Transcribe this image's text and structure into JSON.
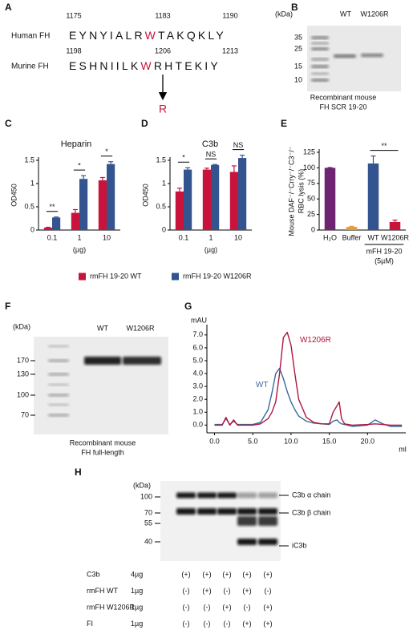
{
  "panel_a": {
    "label": "A",
    "human": {
      "name": "Human FH",
      "positions": [
        1175,
        1183,
        1190
      ],
      "before": "EYNYIALR",
      "residue": "W",
      "after": "TAKQKLY"
    },
    "murine": {
      "name": "Murine FH",
      "positions": [
        1198,
        1206,
        1213
      ],
      "before": "ESHNIILK",
      "residue": "W",
      "after": "RHTEKIY"
    },
    "mutation": "R"
  },
  "panel_b": {
    "label": "B",
    "unit": "(kDa)",
    "markers": [
      "35",
      "25",
      "15",
      "10"
    ],
    "lanes": [
      "WT",
      "W1206R"
    ],
    "caption": [
      "Recombinant mouse",
      "FH SCR 19-20"
    ]
  },
  "chart_data": [
    {
      "label": "C",
      "type": "bar",
      "title": "Heparin",
      "xlabel": "(µg)",
      "ylabel": "OD450",
      "categories": [
        "0.1",
        "1",
        "10"
      ],
      "series": [
        {
          "name": "rmFH 19-20 WT",
          "color": "#c8143c",
          "values": [
            0.05,
            0.37,
            1.07
          ],
          "errors": [
            0.01,
            0.07,
            0.06
          ]
        },
        {
          "name": "rmFH 19-20 W1206R",
          "color": "#34548f",
          "values": [
            0.27,
            1.1,
            1.42
          ],
          "errors": [
            0.01,
            0.07,
            0.05
          ]
        }
      ],
      "ylim": [
        0,
        1.5
      ],
      "yticks": [
        0,
        0.5,
        1,
        1.5
      ],
      "significance": [
        "**",
        "*",
        "*"
      ]
    },
    {
      "label": "D",
      "type": "bar",
      "title": "C3b",
      "xlabel": "(µg)",
      "ylabel": "OD450",
      "categories": [
        "0.1",
        "1",
        "10"
      ],
      "series": [
        {
          "color": "#c8143c",
          "values": [
            0.83,
            1.3,
            1.25
          ],
          "errors": [
            0.07,
            0.03,
            0.13
          ]
        },
        {
          "color": "#34548f",
          "values": [
            1.3,
            1.4,
            1.55
          ],
          "errors": [
            0.04,
            0.01,
            0.06
          ]
        }
      ],
      "ylim": [
        0,
        1.5
      ],
      "yticks": [
        0,
        0.5,
        1,
        1.5
      ],
      "significance": [
        "*",
        "NS",
        "NS"
      ]
    },
    {
      "label": "E",
      "type": "bar",
      "ylabel": [
        "Mouse DAF⁻/⁻Crry⁻/⁻C3⁻/⁻",
        "RBC lysis (%)"
      ],
      "categories": [
        "H₂O",
        "Buffer",
        "WT",
        "W1206R"
      ],
      "values": [
        100,
        5,
        107,
        13
      ],
      "errors": [
        0.5,
        1,
        12,
        3
      ],
      "colors": [
        "#6e2470",
        "#e89a30",
        "#34548f",
        "#c8143c"
      ],
      "group_label": [
        "mFH 19-20",
        "(5µM)"
      ],
      "ylim": [
        0,
        125
      ],
      "yticks": [
        0,
        25,
        50,
        75,
        100,
        125
      ],
      "significance": "**"
    },
    {
      "label": "G",
      "type": "line",
      "ylabel": "mAU",
      "xlabel": "ml",
      "x": [
        0,
        1,
        1.5,
        2,
        2.5,
        3,
        4,
        5,
        6,
        7,
        7.5,
        8,
        8.5,
        9,
        9.5,
        10,
        10.5,
        11,
        12,
        13,
        14,
        15,
        15.5,
        16,
        16.3,
        16.6,
        17,
        18,
        20,
        21,
        22,
        23,
        24.5
      ],
      "series": [
        {
          "name": "WT",
          "color": "#3a6a9c",
          "values": [
            0.05,
            0.05,
            0.5,
            0.05,
            0.3,
            0.05,
            0.05,
            0.05,
            0.2,
            1.2,
            2.5,
            4.0,
            4.4,
            3.6,
            2.6,
            1.8,
            1.2,
            0.7,
            0.3,
            0.15,
            0.1,
            0.05,
            0.3,
            0.4,
            0.2,
            0.1,
            0.05,
            -0.1,
            0,
            0.4,
            0.1,
            -0.1,
            -0.1
          ]
        },
        {
          "name": "W1206R",
          "color": "#b0163e",
          "values": [
            0,
            0,
            0.6,
            0,
            0.4,
            0,
            0,
            0,
            0.1,
            0.5,
            1.0,
            1.8,
            4.0,
            6.8,
            7.2,
            6.2,
            4.0,
            2.0,
            0.6,
            0.2,
            0.1,
            0.1,
            1.0,
            1.5,
            1.8,
            0.5,
            0.1,
            0,
            0.05,
            0.1,
            0.05,
            0,
            0
          ]
        }
      ],
      "xlim": [
        -1,
        25
      ],
      "ylim": [
        -0.6,
        7.8
      ],
      "xticks": [
        {
          "value": 0,
          "label": "0.0"
        },
        {
          "value": 5,
          "label": "5.0"
        },
        {
          "value": 10,
          "label": "10.0"
        },
        {
          "value": 15,
          "label": "15.0"
        },
        {
          "value": 20,
          "label": "20.0"
        }
      ],
      "yticks": [
        {
          "value": 0,
          "label": "0.0"
        },
        {
          "value": 1,
          "label": "1.0"
        },
        {
          "value": 2,
          "label": "2.0"
        },
        {
          "value": 3,
          "label": "3.0"
        },
        {
          "value": 4,
          "label": "4.0"
        },
        {
          "value": 5,
          "label": "5.0"
        },
        {
          "value": 6,
          "label": "6.0"
        },
        {
          "value": 7,
          "label": "7.0"
        }
      ]
    }
  ],
  "panel_f": {
    "label": "F",
    "unit": "(kDa)",
    "markers": [
      "170",
      "130",
      "100",
      "70"
    ],
    "lanes": [
      "WT",
      "W1206R"
    ],
    "caption": [
      "Recombinant mouse",
      "FH full-length"
    ]
  },
  "panel_h": {
    "label": "H",
    "unit": "(kDa)",
    "markers": [
      "100",
      "70",
      "55",
      "40"
    ],
    "bands": [
      "C3b α chain",
      "C3b β chain",
      "iC3b"
    ],
    "rows": [
      {
        "name": "C3b",
        "amount": "4µg",
        "lanes": [
          "(+)",
          "(+)",
          "(+)",
          "(+)",
          "(+)"
        ]
      },
      {
        "name": "rmFH WT",
        "amount": "1µg",
        "lanes": [
          "(-)",
          "(+)",
          "(-)",
          "(+)",
          "(-)"
        ]
      },
      {
        "name": "rmFH W1206R",
        "amount": "1µg",
        "lanes": [
          "(-)",
          "(-)",
          "(+)",
          "(-)",
          "(+)"
        ]
      },
      {
        "name": "FI",
        "amount": "1µg",
        "lanes": [
          "(-)",
          "(-)",
          "(-)",
          "(+)",
          "(+)"
        ]
      }
    ]
  }
}
